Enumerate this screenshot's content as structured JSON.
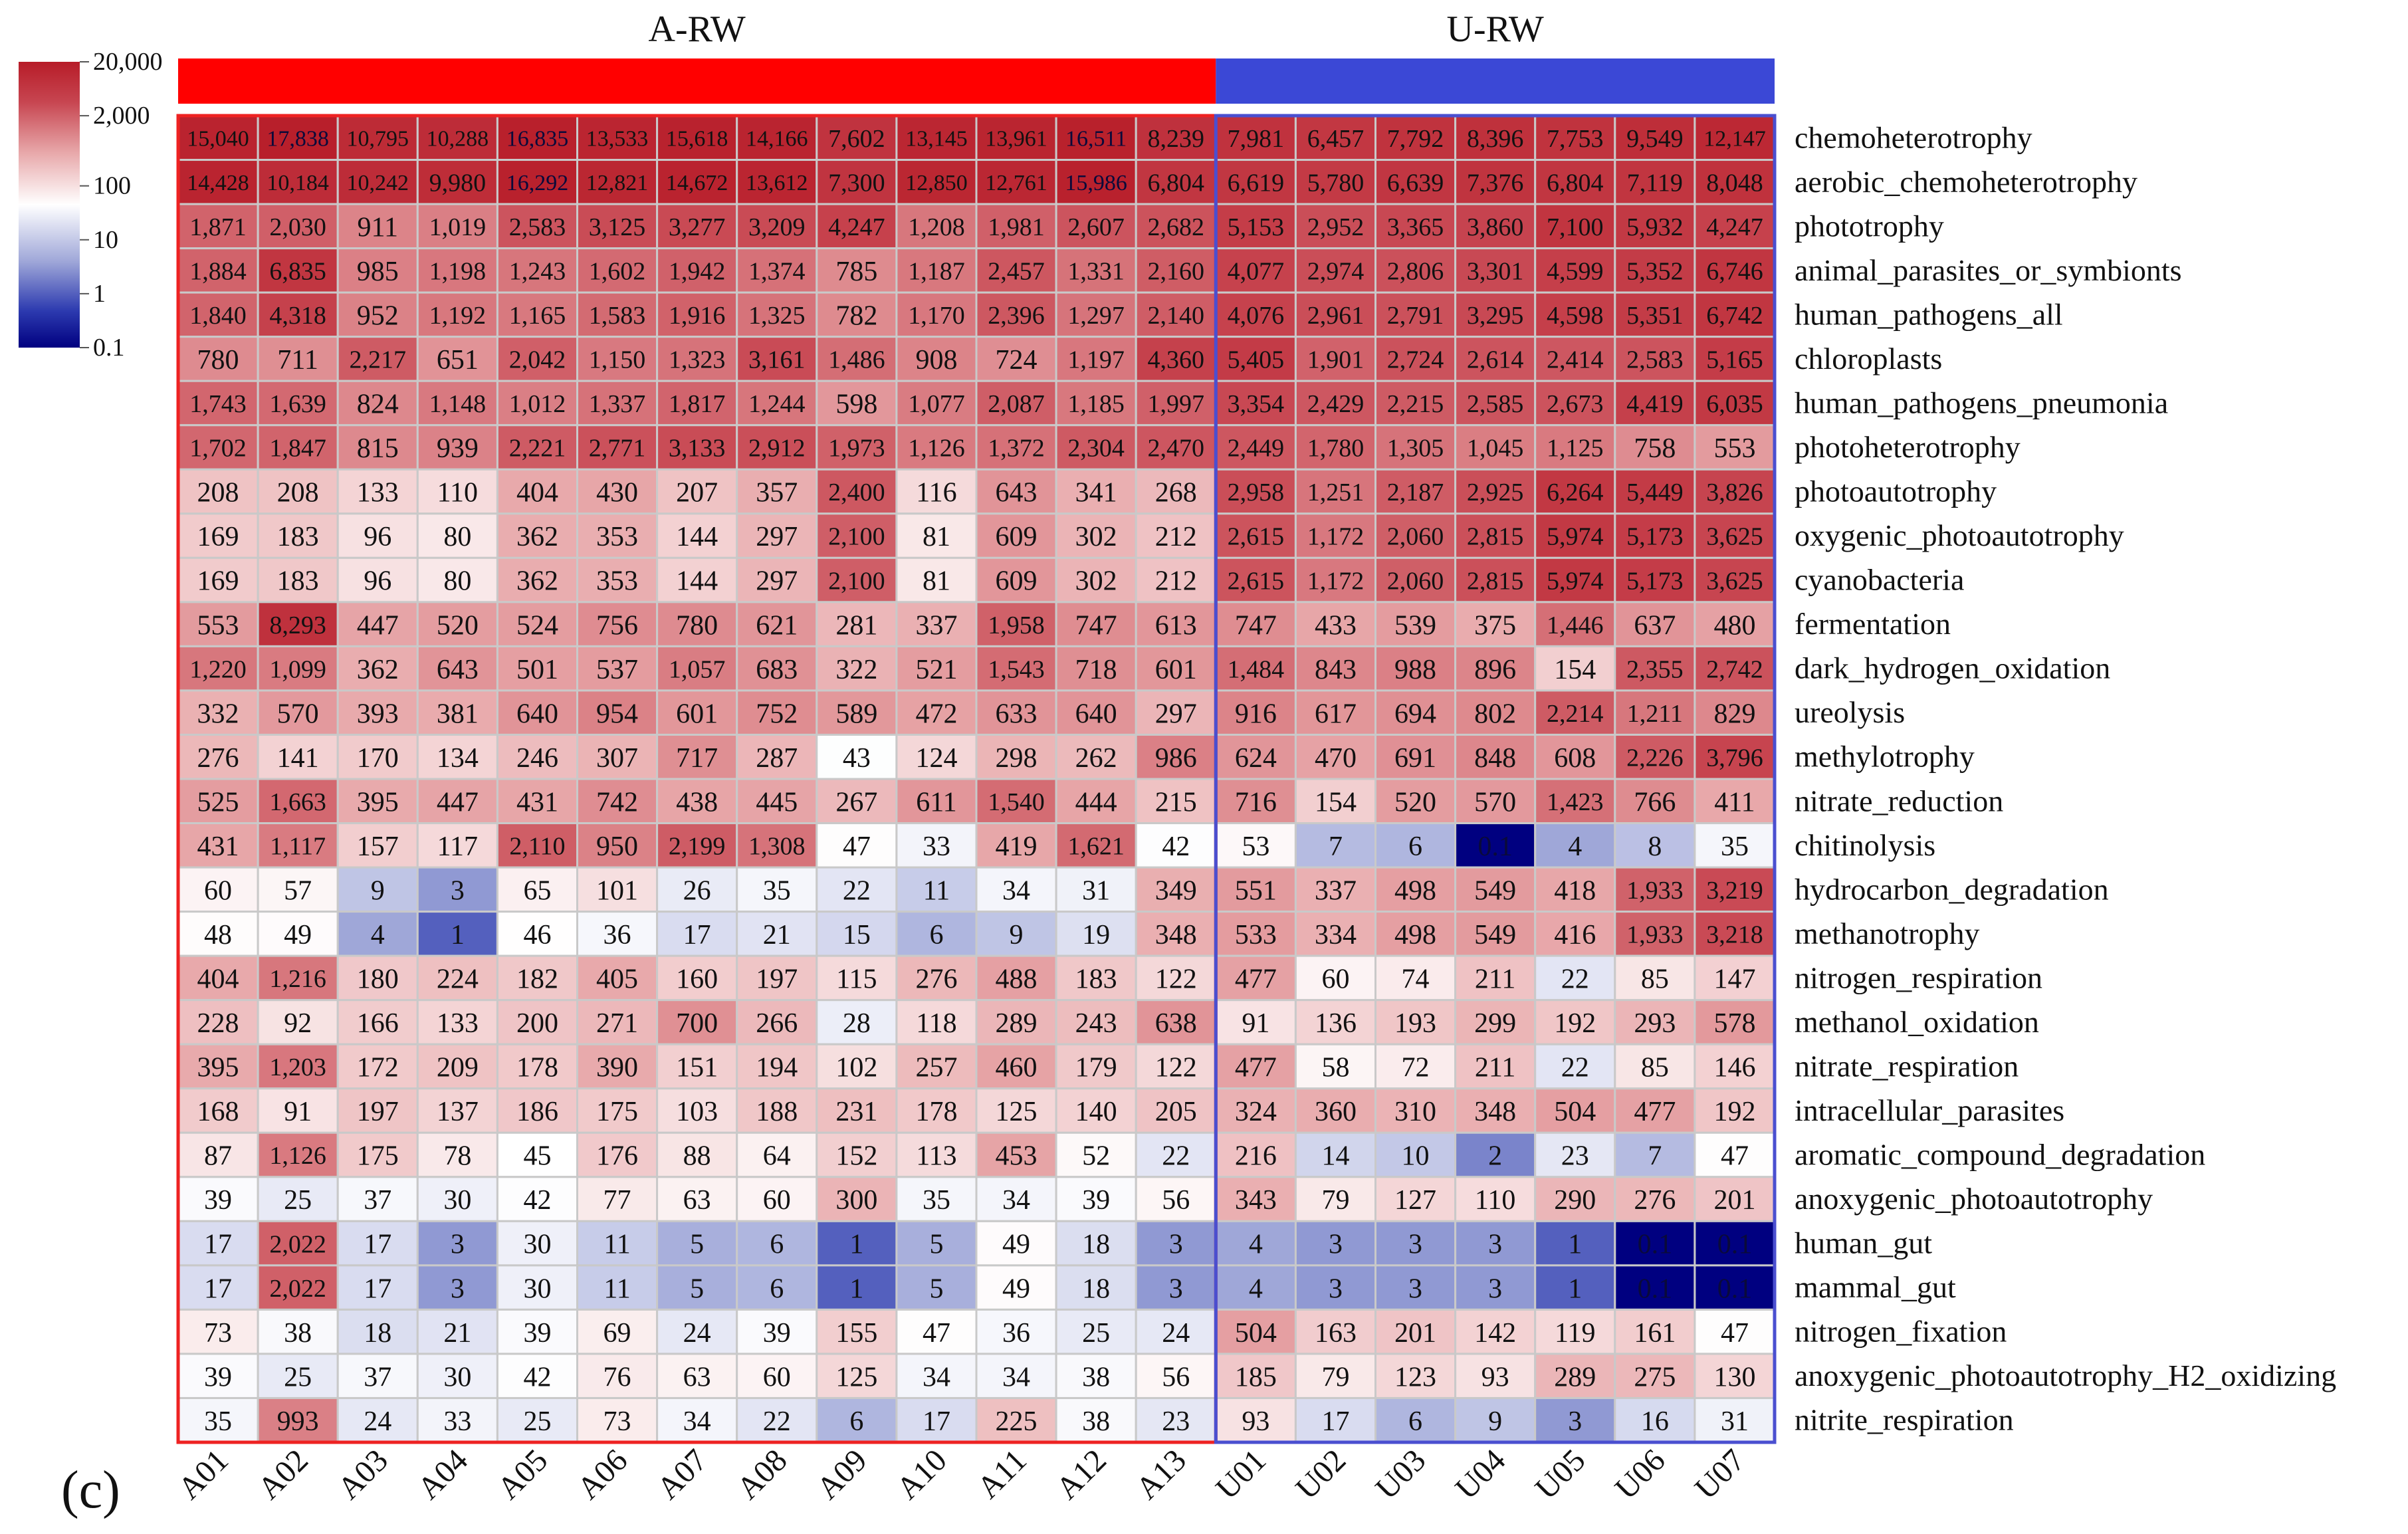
{
  "panel_label": "(c)",
  "chart_data": {
    "type": "heatmap",
    "title": "",
    "scale": "log10",
    "groups": [
      {
        "name": "A-RW",
        "color": "#ff0000",
        "border": "#ee2222",
        "columns": [
          "A01",
          "A02",
          "A03",
          "A04",
          "A05",
          "A06",
          "A07",
          "A08",
          "A09",
          "A10",
          "A11",
          "A12",
          "A13"
        ]
      },
      {
        "name": "U-RW",
        "color": "#3b48d6",
        "border": "#4a4fd0",
        "columns": [
          "U01",
          "U02",
          "U03",
          "U04",
          "U05",
          "U06",
          "U07"
        ]
      }
    ],
    "legend": {
      "labels": [
        "20,000",
        "2,000",
        "100",
        "10",
        "1",
        "0.1"
      ],
      "ticks": [
        20000,
        2000,
        100,
        10,
        1,
        0.1
      ],
      "min": 0.1,
      "max": 20000,
      "colors": [
        "#000080",
        "#2d3bb0",
        "#9ea6d8",
        "#ffffff",
        "#e8a9ab",
        "#c74550",
        "#b71c28"
      ],
      "color_positions": [
        0.0,
        0.13,
        0.3,
        0.5,
        0.68,
        0.86,
        1.0
      ]
    },
    "columns": [
      "A01",
      "A02",
      "A03",
      "A04",
      "A05",
      "A06",
      "A07",
      "A08",
      "A09",
      "A10",
      "A11",
      "A12",
      "A13",
      "U01",
      "U02",
      "U03",
      "U04",
      "U05",
      "U06",
      "U07"
    ],
    "rows": [
      {
        "name": "chemoheterotrophy",
        "values": [
          15040,
          17838,
          10795,
          10288,
          16835,
          13533,
          15618,
          14166,
          7602,
          13145,
          13961,
          16511,
          8239,
          7981,
          6457,
          7792,
          8396,
          7753,
          9549,
          12147
        ]
      },
      {
        "name": "aerobic_chemoheterotrophy",
        "values": [
          14428,
          10184,
          10242,
          9980,
          16292,
          12821,
          14672,
          13612,
          7300,
          12850,
          12761,
          15986,
          6804,
          6619,
          5780,
          6639,
          7376,
          6804,
          7119,
          8048
        ]
      },
      {
        "name": "phototrophy",
        "values": [
          1871,
          2030,
          911,
          1019,
          2583,
          3125,
          3277,
          3209,
          4247,
          1208,
          1981,
          2607,
          2682,
          5153,
          2952,
          3365,
          3860,
          7100,
          5932,
          4247
        ]
      },
      {
        "name": "animal_parasites_or_symbionts",
        "values": [
          1884,
          6835,
          985,
          1198,
          1243,
          1602,
          1942,
          1374,
          785,
          1187,
          2457,
          1331,
          2160,
          4077,
          2974,
          2806,
          3301,
          4599,
          5352,
          6746
        ]
      },
      {
        "name": "human_pathogens_all",
        "values": [
          1840,
          4318,
          952,
          1192,
          1165,
          1583,
          1916,
          1325,
          782,
          1170,
          2396,
          1297,
          2140,
          4076,
          2961,
          2791,
          3295,
          4598,
          5351,
          6742
        ]
      },
      {
        "name": "chloroplasts",
        "values": [
          780,
          711,
          2217,
          651,
          2042,
          1150,
          1323,
          3161,
          1486,
          908,
          724,
          1197,
          4360,
          5405,
          1901,
          2724,
          2614,
          2414,
          2583,
          5165
        ]
      },
      {
        "name": "human_pathogens_pneumonia",
        "values": [
          1743,
          1639,
          824,
          1148,
          1012,
          1337,
          1817,
          1244,
          598,
          1077,
          2087,
          1185,
          1997,
          3354,
          2429,
          2215,
          2585,
          2673,
          4419,
          6035
        ]
      },
      {
        "name": "photoheterotrophy",
        "values": [
          1702,
          1847,
          815,
          939,
          2221,
          2771,
          3133,
          2912,
          1973,
          1126,
          1372,
          2304,
          2470,
          2449,
          1780,
          1305,
          1045,
          1125,
          758,
          553
        ]
      },
      {
        "name": "photoautotrophy",
        "values": [
          208,
          208,
          133,
          110,
          404,
          430,
          207,
          357,
          2400,
          116,
          643,
          341,
          268,
          2958,
          1251,
          2187,
          2925,
          6264,
          5449,
          3826
        ]
      },
      {
        "name": "oxygenic_photoautotrophy",
        "values": [
          169,
          183,
          96,
          80,
          362,
          353,
          144,
          297,
          2100,
          81,
          609,
          302,
          212,
          2615,
          1172,
          2060,
          2815,
          5974,
          5173,
          3625
        ]
      },
      {
        "name": "cyanobacteria",
        "values": [
          169,
          183,
          96,
          80,
          362,
          353,
          144,
          297,
          2100,
          81,
          609,
          302,
          212,
          2615,
          1172,
          2060,
          2815,
          5974,
          5173,
          3625
        ]
      },
      {
        "name": "fermentation",
        "values": [
          553,
          8293,
          447,
          520,
          524,
          756,
          780,
          621,
          281,
          337,
          1958,
          747,
          613,
          747,
          433,
          539,
          375,
          1446,
          637,
          480
        ]
      },
      {
        "name": "dark_hydrogen_oxidation",
        "values": [
          1220,
          1099,
          362,
          643,
          501,
          537,
          1057,
          683,
          322,
          521,
          1543,
          718,
          601,
          1484,
          843,
          988,
          896,
          154,
          2355,
          2742
        ]
      },
      {
        "name": "ureolysis",
        "values": [
          332,
          570,
          393,
          381,
          640,
          954,
          601,
          752,
          589,
          472,
          633,
          640,
          297,
          916,
          617,
          694,
          802,
          2214,
          1211,
          829
        ]
      },
      {
        "name": "methylotrophy",
        "values": [
          276,
          141,
          170,
          134,
          246,
          307,
          717,
          287,
          43,
          124,
          298,
          262,
          986,
          624,
          470,
          691,
          848,
          608,
          2226,
          3796
        ]
      },
      {
        "name": "nitrate_reduction",
        "values": [
          525,
          1663,
          395,
          447,
          431,
          742,
          438,
          445,
          267,
          611,
          1540,
          444,
          215,
          716,
          154,
          520,
          570,
          1423,
          766,
          411
        ]
      },
      {
        "name": "chitinolysis",
        "values": [
          431,
          1117,
          157,
          117,
          2110,
          950,
          2199,
          1308,
          47,
          33,
          419,
          1621,
          42,
          53,
          7,
          6,
          0.1,
          4,
          8,
          35
        ]
      },
      {
        "name": "hydrocarbon_degradation",
        "values": [
          60,
          57,
          9,
          3,
          65,
          101,
          26,
          35,
          22,
          11,
          34,
          31,
          349,
          551,
          337,
          498,
          549,
          418,
          1933,
          3219
        ]
      },
      {
        "name": "methanotrophy",
        "values": [
          48,
          49,
          4,
          1,
          46,
          36,
          17,
          21,
          15,
          6,
          9,
          19,
          348,
          533,
          334,
          498,
          549,
          416,
          1933,
          3218
        ]
      },
      {
        "name": "nitrogen_respiration",
        "values": [
          404,
          1216,
          180,
          224,
          182,
          405,
          160,
          197,
          115,
          276,
          488,
          183,
          122,
          477,
          60,
          74,
          211,
          22,
          85,
          147
        ]
      },
      {
        "name": "methanol_oxidation",
        "values": [
          228,
          92,
          166,
          133,
          200,
          271,
          700,
          266,
          28,
          118,
          289,
          243,
          638,
          91,
          136,
          193,
          299,
          192,
          293,
          578
        ]
      },
      {
        "name": "nitrate_respiration",
        "values": [
          395,
          1203,
          172,
          209,
          178,
          390,
          151,
          194,
          102,
          257,
          460,
          179,
          122,
          477,
          58,
          72,
          211,
          22,
          85,
          146
        ]
      },
      {
        "name": "intracellular_parasites",
        "values": [
          168,
          91,
          197,
          137,
          186,
          175,
          103,
          188,
          231,
          178,
          125,
          140,
          205,
          324,
          360,
          310,
          348,
          504,
          477,
          192
        ]
      },
      {
        "name": "aromatic_compound_degradation",
        "values": [
          87,
          1126,
          175,
          78,
          45,
          176,
          88,
          64,
          152,
          113,
          453,
          52,
          22,
          216,
          14,
          10,
          2,
          23,
          7,
          47
        ]
      },
      {
        "name": "anoxygenic_photoautotrophy",
        "values": [
          39,
          25,
          37,
          30,
          42,
          77,
          63,
          60,
          300,
          35,
          34,
          39,
          56,
          343,
          79,
          127,
          110,
          290,
          276,
          201
        ]
      },
      {
        "name": "human_gut",
        "values": [
          17,
          2022,
          17,
          3,
          30,
          11,
          5,
          6,
          1,
          5,
          49,
          18,
          3,
          4,
          3,
          3,
          3,
          1,
          0.1,
          0.1
        ]
      },
      {
        "name": "mammal_gut",
        "values": [
          17,
          2022,
          17,
          3,
          30,
          11,
          5,
          6,
          1,
          5,
          49,
          18,
          3,
          4,
          3,
          3,
          3,
          1,
          0.1,
          0.1
        ]
      },
      {
        "name": "nitrogen_fixation",
        "values": [
          73,
          38,
          18,
          21,
          39,
          69,
          24,
          39,
          155,
          47,
          36,
          25,
          24,
          504,
          163,
          201,
          142,
          119,
          161,
          47
        ]
      },
      {
        "name": "anoxygenic_photoautotrophy_H2_oxidizing",
        "values": [
          39,
          25,
          37,
          30,
          42,
          76,
          63,
          60,
          125,
          34,
          34,
          38,
          56,
          185,
          79,
          123,
          93,
          289,
          275,
          130
        ]
      },
      {
        "name": "nitrite_respiration",
        "values": [
          35,
          993,
          24,
          33,
          25,
          73,
          34,
          22,
          6,
          17,
          225,
          38,
          23,
          93,
          17,
          6,
          9,
          3,
          16,
          31
        ]
      }
    ]
  }
}
